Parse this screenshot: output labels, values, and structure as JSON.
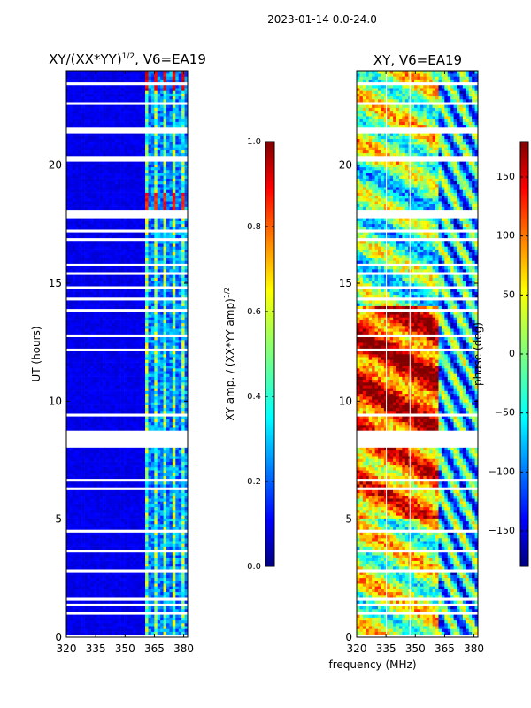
{
  "chart_data": {
    "type": "heatmap",
    "suptitle": "2023-01-14 0.0-24.0",
    "shared_xlabel": "frequency (MHz)",
    "panels": [
      {
        "id": "amp",
        "title_main": "XY/(XX*YY)",
        "title_exp": "1/2",
        "title_suffix": ", V6=EA19",
        "ylabel": "UT (hours)",
        "xlim": [
          320,
          382
        ],
        "ylim": [
          0,
          24
        ],
        "xticks": [
          320,
          335,
          350,
          365,
          380
        ],
        "yticks": [
          0,
          5,
          10,
          15,
          20
        ],
        "colorbar": {
          "label_main": "XY amp. / (XX*YY amp)",
          "label_exp": "1/2",
          "range": [
            0.0,
            1.0
          ],
          "ticks": [
            "0.0",
            "0.2",
            "0.4",
            "0.6",
            "0.8",
            "1.0"
          ],
          "tick_values": [
            0.0,
            0.2,
            0.4,
            0.6,
            0.8,
            1.0
          ]
        }
      },
      {
        "id": "phase",
        "title_main": "XY, V6=EA19",
        "ylabel": "",
        "xlim": [
          320,
          382
        ],
        "ylim": [
          0,
          24
        ],
        "xticks": [
          320,
          335,
          350,
          365,
          380
        ],
        "yticks": [
          0,
          5,
          10,
          15,
          20
        ],
        "colorbar": {
          "label_main": "phase (deg)",
          "range": [
            -180,
            180
          ],
          "ticks": [
            "150",
            "100",
            "50",
            "0",
            "−50",
            "−100",
            "−150"
          ],
          "tick_values": [
            150,
            100,
            50,
            0,
            -50,
            -100,
            -150
          ]
        }
      }
    ]
  }
}
